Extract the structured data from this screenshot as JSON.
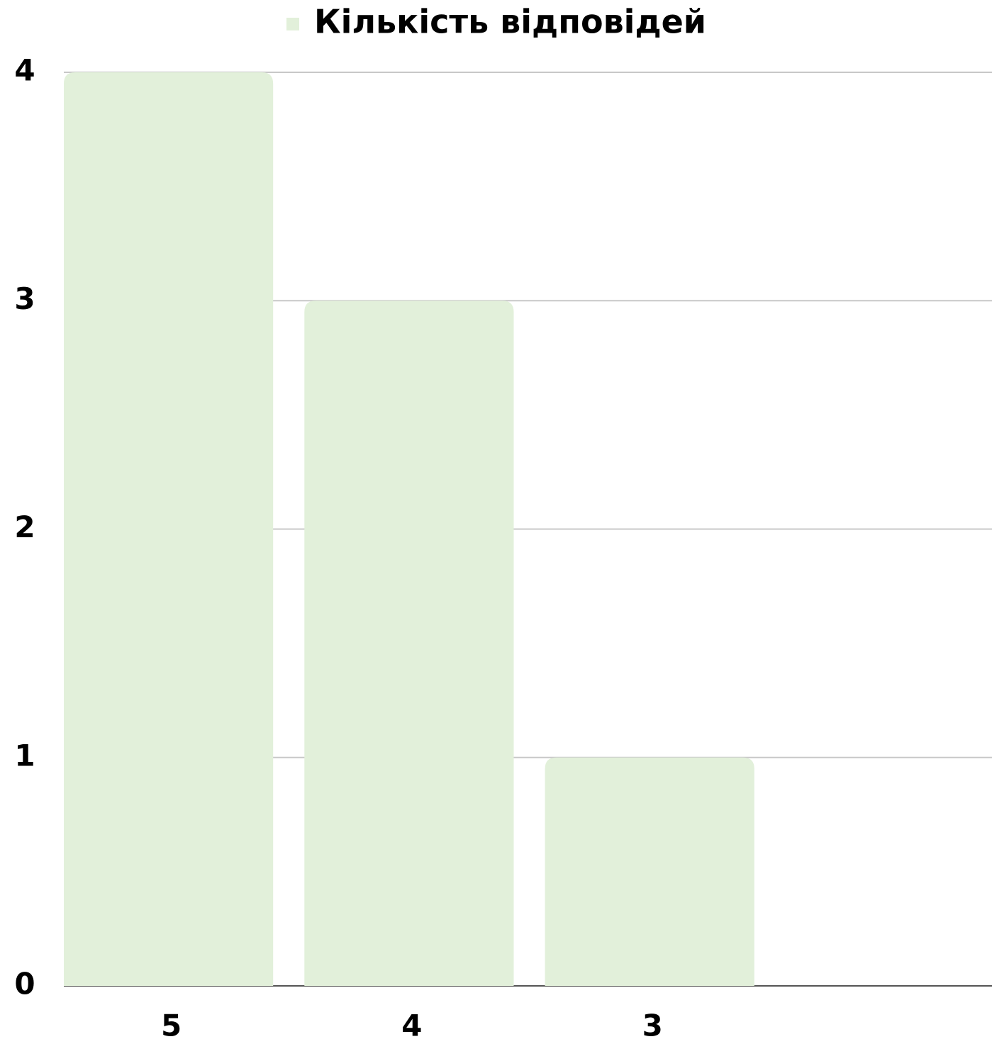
{
  "chart_data": {
    "type": "bar",
    "categories": [
      "5",
      "4",
      "3"
    ],
    "series": [
      {
        "name": "Кількість відповідей",
        "color": "#e2f0da",
        "values": [
          4,
          3,
          1
        ]
      }
    ],
    "ylim": [
      0,
      4
    ],
    "yticks": [
      0,
      1,
      2,
      3,
      4
    ],
    "grid": true,
    "legend": "top"
  }
}
